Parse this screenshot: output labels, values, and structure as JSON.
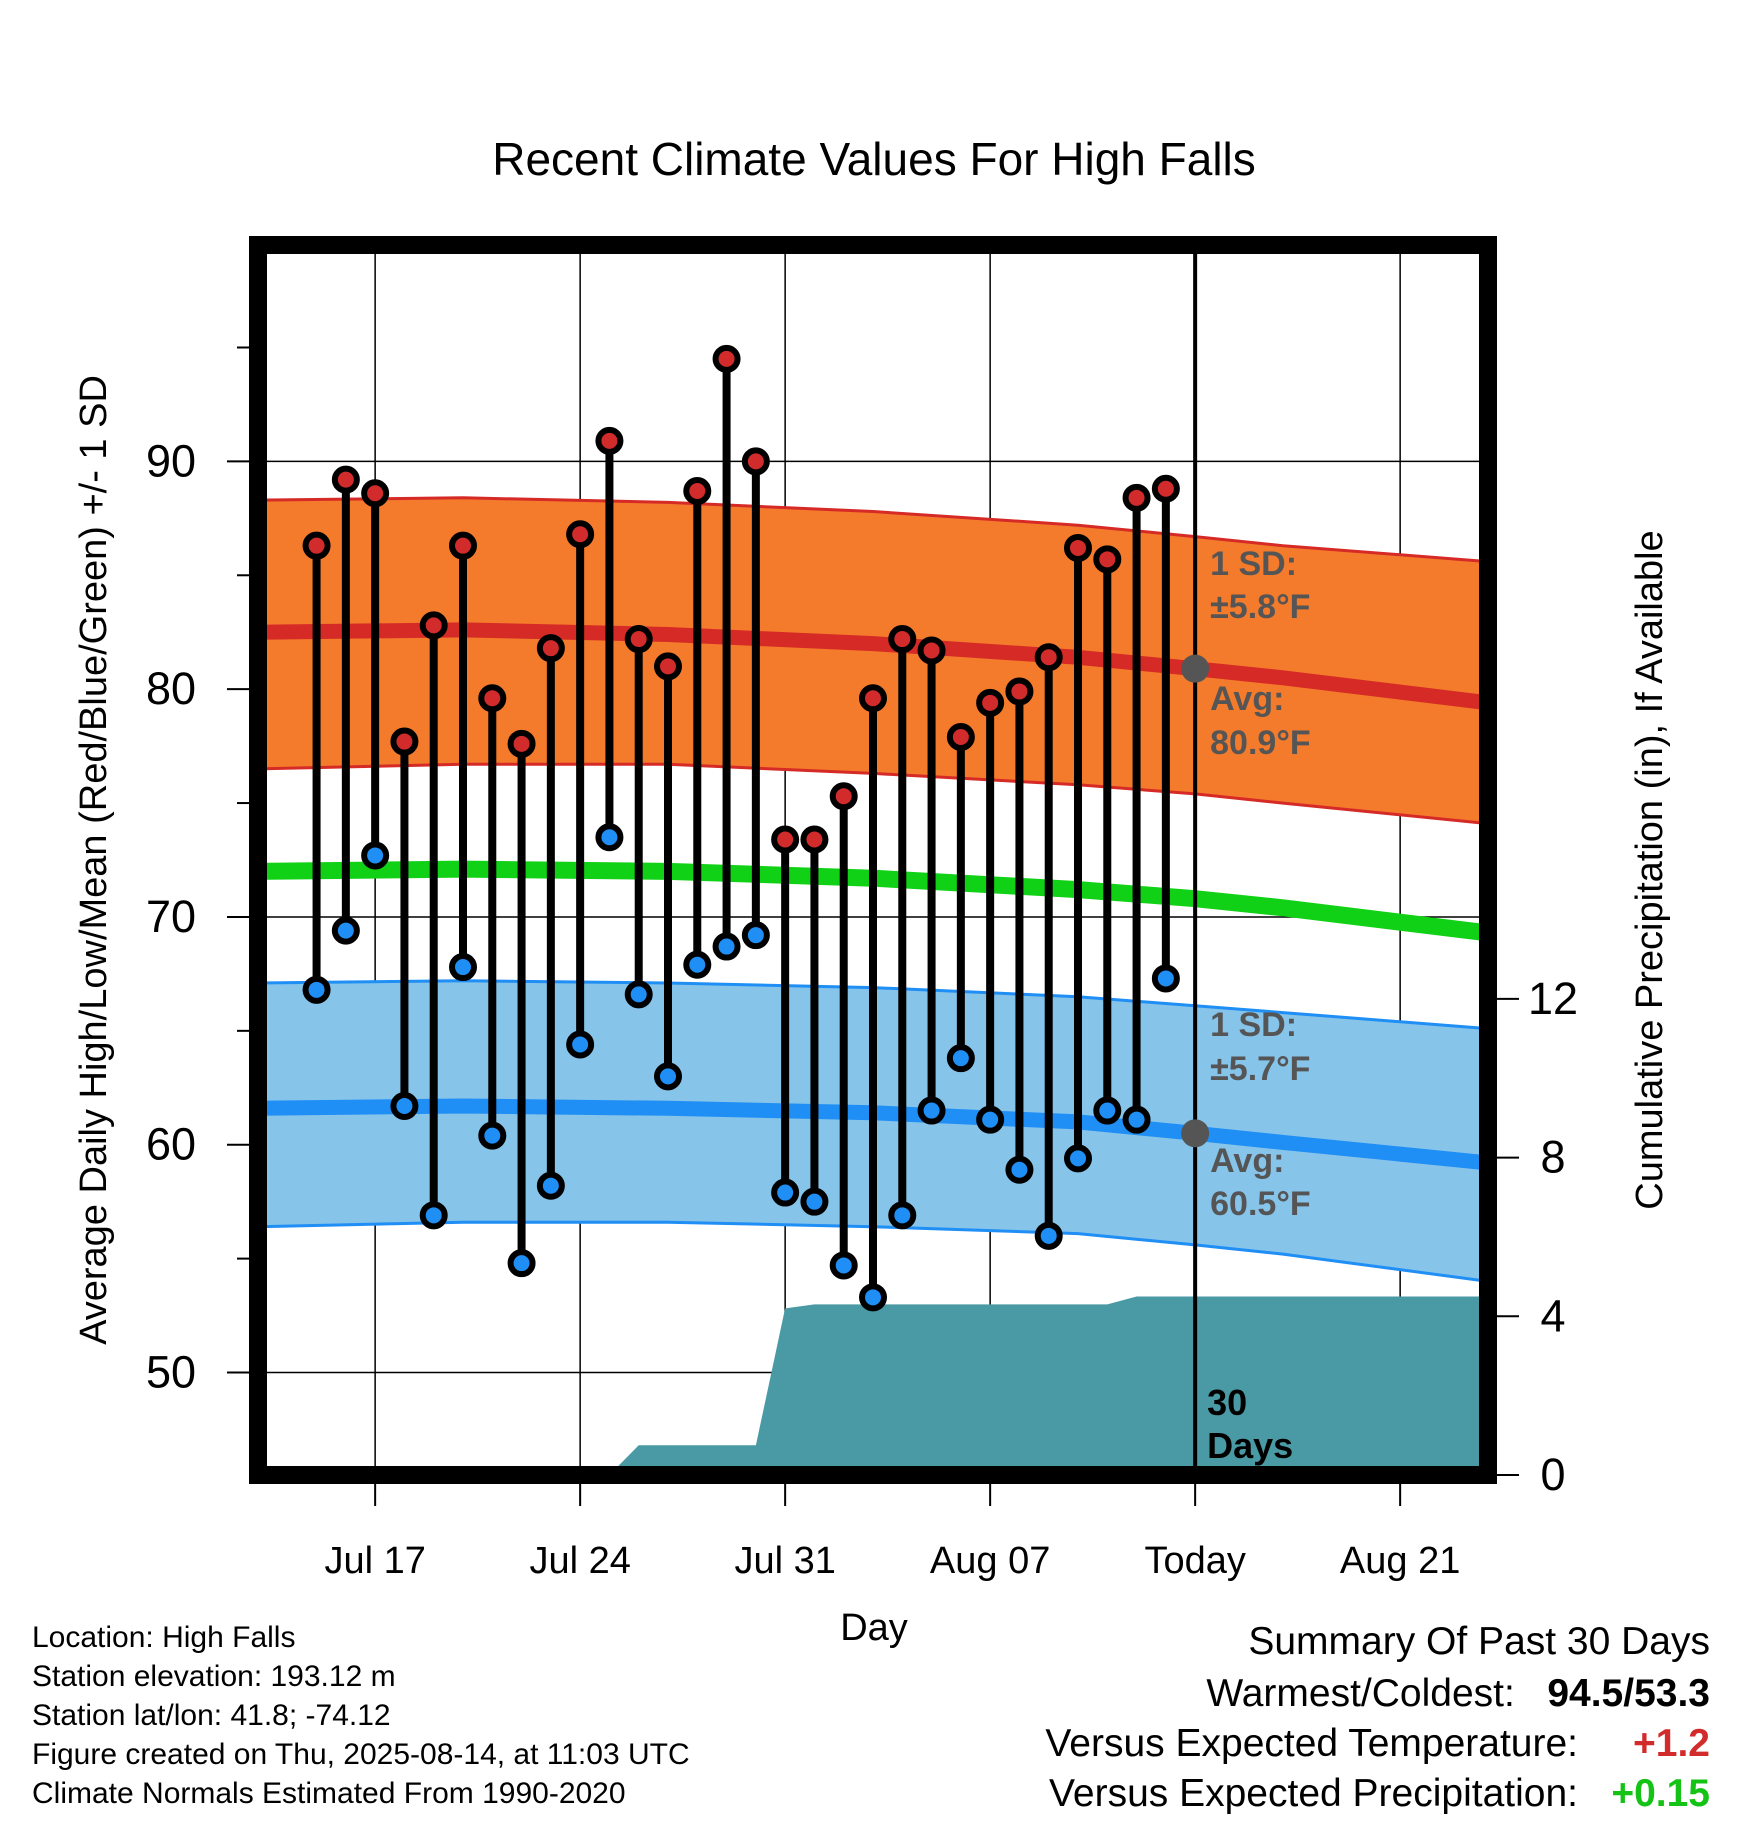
{
  "chart_data": {
    "type": "line",
    "title": "Recent Climate Values For High Falls",
    "xlabel": "Day",
    "ylabel": "Average Daily High/Low/Mean (Red/Blue/Green) +/- 1 SD",
    "y2label": "Cumulative Precipitation (in), If Available",
    "ylim": [
      45.5,
      99.5
    ],
    "y2lim": [
      0,
      31
    ],
    "xlim": [
      "2025-07-13",
      "2025-08-24"
    ],
    "x_ticks": [
      {
        "date": "2025-07-17",
        "label": "Jul 17"
      },
      {
        "date": "2025-07-24",
        "label": "Jul 24"
      },
      {
        "date": "2025-07-31",
        "label": "Jul 31"
      },
      {
        "date": "2025-08-07",
        "label": "Aug 07"
      },
      {
        "date": "2025-08-14",
        "label": "Today"
      },
      {
        "date": "2025-08-21",
        "label": "Aug 21"
      }
    ],
    "y_ticks": [
      50,
      60,
      70,
      80,
      90
    ],
    "y2_ticks": [
      0,
      4,
      8,
      12
    ],
    "grid": true,
    "dates": [
      "2025-07-15",
      "2025-07-16",
      "2025-07-17",
      "2025-07-18",
      "2025-07-19",
      "2025-07-20",
      "2025-07-21",
      "2025-07-22",
      "2025-07-23",
      "2025-07-24",
      "2025-07-25",
      "2025-07-26",
      "2025-07-27",
      "2025-07-28",
      "2025-07-29",
      "2025-07-30",
      "2025-07-31",
      "2025-08-01",
      "2025-08-02",
      "2025-08-03",
      "2025-08-04",
      "2025-08-05",
      "2025-08-06",
      "2025-08-07",
      "2025-08-08",
      "2025-08-09",
      "2025-08-10",
      "2025-08-11",
      "2025-08-12",
      "2025-08-13"
    ],
    "observed_high": [
      86.3,
      89.2,
      88.6,
      77.7,
      82.8,
      86.3,
      79.6,
      77.6,
      81.8,
      86.8,
      90.9,
      82.2,
      81.0,
      88.7,
      94.5,
      90.0,
      73.4,
      73.4,
      75.3,
      79.6,
      82.2,
      81.7,
      77.9,
      79.4,
      79.9,
      81.4,
      86.2,
      85.7,
      88.4,
      88.8
    ],
    "observed_low": [
      66.8,
      69.4,
      72.7,
      61.7,
      56.9,
      67.8,
      60.4,
      54.8,
      58.2,
      64.4,
      73.5,
      66.6,
      63.0,
      67.9,
      68.7,
      69.2,
      57.9,
      57.5,
      54.7,
      53.3,
      56.9,
      61.5,
      63.8,
      61.1,
      58.9,
      56.0,
      59.4,
      61.5,
      61.1,
      67.3
    ],
    "normal_dates": [
      "2025-07-13",
      "2025-07-20",
      "2025-07-27",
      "2025-08-03",
      "2025-08-10",
      "2025-08-14",
      "2025-08-17",
      "2025-08-24"
    ],
    "normal_high": [
      82.5,
      82.6,
      82.4,
      82.0,
      81.4,
      80.9,
      80.5,
      79.4
    ],
    "normal_high_upper": [
      88.3,
      88.4,
      88.2,
      87.8,
      87.2,
      86.7,
      86.3,
      85.6
    ],
    "normal_high_lower": [
      76.5,
      76.7,
      76.7,
      76.3,
      75.8,
      75.4,
      75.0,
      74.1
    ],
    "normal_mean": [
      72.0,
      72.1,
      72.0,
      71.7,
      71.2,
      70.8,
      70.4,
      69.3
    ],
    "normal_low": [
      61.6,
      61.7,
      61.6,
      61.4,
      61.0,
      60.5,
      60.1,
      59.2
    ],
    "normal_low_upper": [
      67.1,
      67.2,
      67.1,
      66.9,
      66.5,
      66.1,
      65.8,
      65.1
    ],
    "normal_low_lower": [
      56.4,
      56.6,
      56.6,
      56.4,
      56.1,
      55.6,
      55.2,
      54.0
    ],
    "precip_dates": [
      "2025-07-25",
      "2025-07-26",
      "2025-07-30",
      "2025-07-31",
      "2025-08-01",
      "2025-08-11",
      "2025-08-12",
      "2025-08-24"
    ],
    "cumulative_precip": [
      0,
      0.75,
      0.75,
      4.2,
      4.3,
      4.3,
      4.5,
      4.5
    ],
    "annotations": {
      "high_sd": {
        "line1": "1 SD:",
        "line2": "±5.8°F"
      },
      "high_avg": {
        "line1": "Avg:",
        "line2": "80.9°F",
        "value": 80.9
      },
      "low_sd": {
        "line1": "1 SD:",
        "line2": "±5.7°F"
      },
      "low_avg": {
        "line1": "Avg:",
        "line2": "60.5°F",
        "value": 60.5
      },
      "today_line": {
        "line1": "30",
        "line2": "Days"
      }
    },
    "colors": {
      "high_band": "#f47b2b",
      "high_line": "#d52a26",
      "high_marker": "#d22b2b",
      "low_band": "#86c4ea",
      "low_line": "#1f8ef5",
      "low_marker": "#1f8ef5",
      "mean_line": "#11d116",
      "precip": "#4a9aa5",
      "annotation": "#555555"
    }
  },
  "info": {
    "location": "Location: High Falls",
    "elevation": "Station elevation: 193.12 m",
    "latlon": "Station lat/lon: 41.8; -74.12",
    "created": "Figure created on Thu, 2025-08-14, at 11:03 UTC",
    "normals": "Climate Normals Estimated From 1990-2020"
  },
  "summary": {
    "title": "Summary Of Past 30 Days",
    "warm_cold_label": "Warmest/Coldest:",
    "warmest": "94.5",
    "separator": "/",
    "coldest": "53.3",
    "temp_label": "Versus Expected Temperature:",
    "temp_value": "+1.2",
    "temp_color": "#d22b2b",
    "precip_label": "Versus Expected Precipitation:",
    "precip_value": "+0.15",
    "precip_color": "#15c316"
  }
}
